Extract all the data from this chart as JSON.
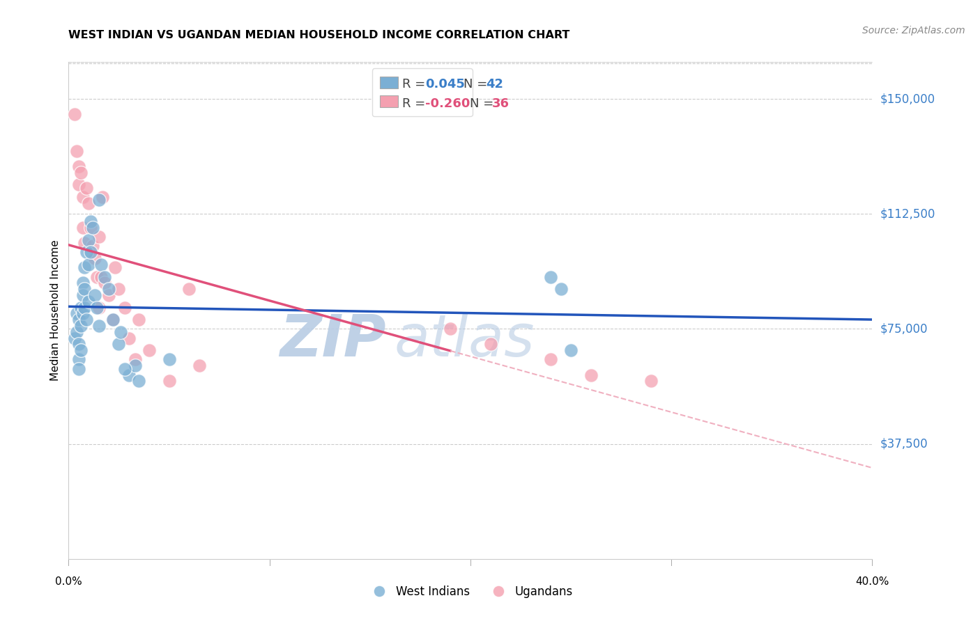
{
  "title": "WEST INDIAN VS UGANDAN MEDIAN HOUSEHOLD INCOME CORRELATION CHART",
  "source": "Source: ZipAtlas.com",
  "ylabel": "Median Household Income",
  "xmin": 0.0,
  "xmax": 0.4,
  "ymin": 0,
  "ymax": 162000,
  "ytick_positions": [
    37500,
    75000,
    112500,
    150000
  ],
  "ytick_labels": [
    "$37,500",
    "$75,000",
    "$112,500",
    "$150,000"
  ],
  "blue_R": 0.045,
  "blue_N": 42,
  "pink_R": -0.26,
  "pink_N": 36,
  "blue_color": "#7bafd4",
  "pink_color": "#f4a0b0",
  "blue_line_color": "#2255bb",
  "pink_line_color": "#e0507a",
  "pink_dash_color": "#f0b0c0",
  "watermark_color": "#c8d8ef",
  "blue_x": [
    0.003,
    0.004,
    0.004,
    0.005,
    0.005,
    0.005,
    0.005,
    0.006,
    0.006,
    0.006,
    0.007,
    0.007,
    0.007,
    0.008,
    0.008,
    0.008,
    0.009,
    0.009,
    0.01,
    0.01,
    0.01,
    0.011,
    0.011,
    0.012,
    0.013,
    0.014,
    0.015,
    0.016,
    0.018,
    0.025,
    0.03,
    0.033,
    0.035,
    0.24,
    0.245,
    0.25,
    0.015,
    0.02,
    0.022,
    0.026,
    0.028,
    0.05
  ],
  "blue_y": [
    72000,
    80000,
    74000,
    78000,
    70000,
    65000,
    62000,
    82000,
    76000,
    68000,
    90000,
    86000,
    80000,
    95000,
    88000,
    82000,
    100000,
    78000,
    104000,
    96000,
    84000,
    110000,
    100000,
    108000,
    86000,
    82000,
    76000,
    96000,
    92000,
    70000,
    60000,
    63000,
    58000,
    92000,
    88000,
    68000,
    117000,
    88000,
    78000,
    74000,
    62000,
    65000
  ],
  "pink_x": [
    0.003,
    0.004,
    0.005,
    0.005,
    0.006,
    0.007,
    0.007,
    0.008,
    0.009,
    0.01,
    0.011,
    0.012,
    0.013,
    0.014,
    0.015,
    0.015,
    0.016,
    0.017,
    0.018,
    0.02,
    0.022,
    0.023,
    0.025,
    0.028,
    0.03,
    0.033,
    0.035,
    0.04,
    0.05,
    0.06,
    0.065,
    0.19,
    0.21,
    0.24,
    0.26,
    0.29
  ],
  "pink_y": [
    145000,
    133000,
    128000,
    122000,
    126000,
    108000,
    118000,
    103000,
    121000,
    116000,
    108000,
    102000,
    98000,
    92000,
    105000,
    82000,
    92000,
    118000,
    90000,
    86000,
    78000,
    95000,
    88000,
    82000,
    72000,
    65000,
    78000,
    68000,
    58000,
    88000,
    63000,
    75000,
    70000,
    65000,
    60000,
    58000
  ]
}
